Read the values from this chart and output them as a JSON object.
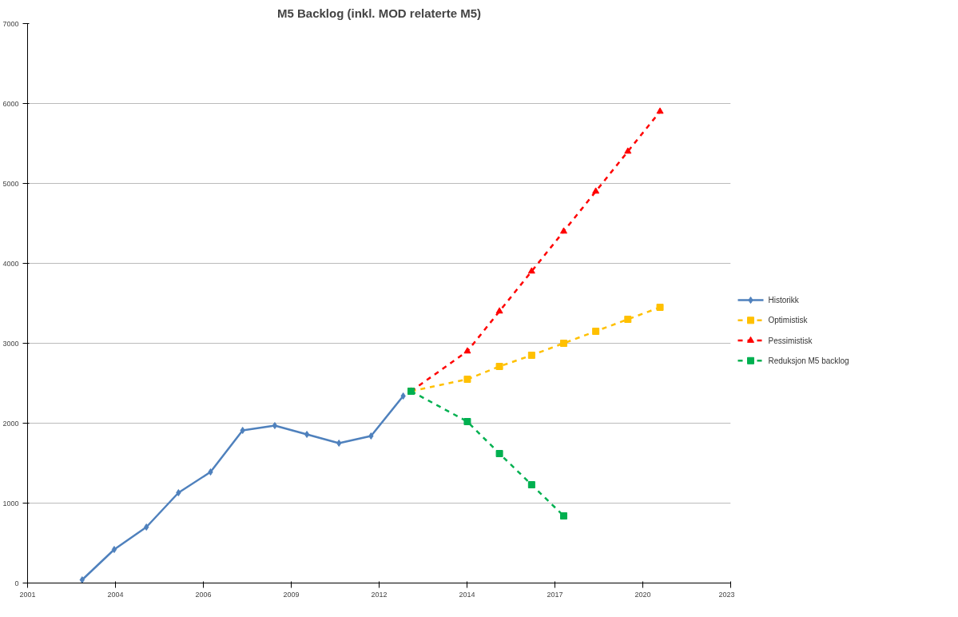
{
  "chart_data": {
    "type": "line",
    "title": "M5 Backlog (inkl. MOD relaterte M5)",
    "xlim": [
      "2001-04-20",
      "2023-03-16"
    ],
    "xticks": [
      {
        "value": "2001-04-20",
        "label": "2001"
      },
      {
        "value": "2004-01-15",
        "label": "2004"
      },
      {
        "value": "2006-10-11",
        "label": "2006"
      },
      {
        "value": "2009-07-07",
        "label": "2009"
      },
      {
        "value": "2012-04-02",
        "label": "2012"
      },
      {
        "value": "2014-12-28",
        "label": "2014"
      },
      {
        "value": "2017-09-23",
        "label": "2017"
      },
      {
        "value": "2020-06-19",
        "label": "2020"
      },
      {
        "value": "2023-03-16",
        "label": "2023"
      }
    ],
    "ylim": [
      0,
      7000
    ],
    "yticks": [
      0,
      1000,
      2000,
      3000,
      4000,
      5000,
      6000,
      7000
    ],
    "grid": "y",
    "legend": "right",
    "series": [
      {
        "name": "Historikk",
        "color": "#4f81bd",
        "marker": "diamond",
        "line_style": "solid",
        "x": [
          "2003-01",
          "2004-01",
          "2005-01",
          "2006-01",
          "2007-01",
          "2008-01",
          "2009-01",
          "2010-01",
          "2011-01",
          "2012-01",
          "2013-01"
        ],
        "values": [
          40,
          420,
          700,
          1130,
          1390,
          1910,
          1970,
          1860,
          1750,
          1840,
          2340
        ]
      },
      {
        "name": "Optimistisk",
        "color": "#ffc000",
        "marker": "square",
        "line_style": "dashed",
        "x": [
          "2013-04",
          "2015-01",
          "2016-01",
          "2017-01",
          "2018-01",
          "2019-01",
          "2020-01",
          "2021-01"
        ],
        "values": [
          2400,
          2550,
          2710,
          2850,
          3000,
          3150,
          3300,
          3450
        ]
      },
      {
        "name": "Pessimistisk",
        "color": "#ff0000",
        "marker": "triangle",
        "line_style": "dashed",
        "x": [
          "2013-04",
          "2015-01",
          "2016-01",
          "2017-01",
          "2018-01",
          "2019-01",
          "2020-01",
          "2021-01"
        ],
        "values": [
          2400,
          2900,
          3400,
          3900,
          4400,
          4900,
          5400,
          5900
        ]
      },
      {
        "name": "Reduksjon M5 backlog",
        "color": "#00b050",
        "marker": "square",
        "line_style": "dashed",
        "x": [
          "2013-04",
          "2015-01",
          "2016-01",
          "2017-01",
          "2018-01"
        ],
        "values": [
          2400,
          2020,
          1620,
          1230,
          840
        ]
      }
    ]
  }
}
